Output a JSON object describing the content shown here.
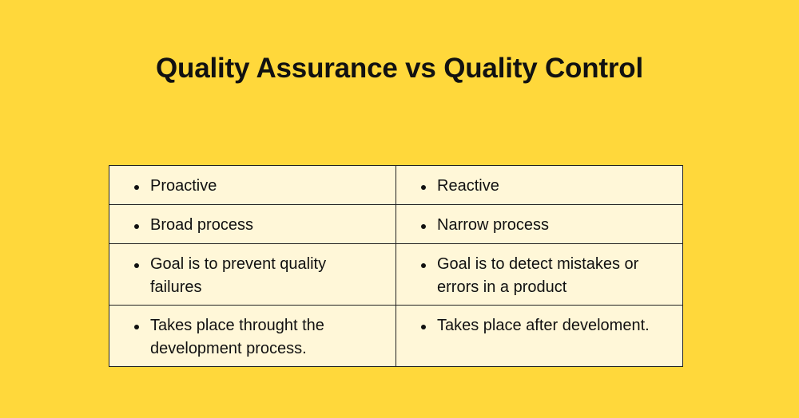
{
  "title": "Quality Assurance vs Quality Control",
  "rows": [
    {
      "qa": "Proactive",
      "qc": "Reactive"
    },
    {
      "qa": "Broad process",
      "qc": "Narrow process"
    },
    {
      "qa": "Goal is to prevent quality failures",
      "qc": "Goal is to detect mistakes or errors in a product"
    },
    {
      "qa": "Takes place throught the development process.",
      "qc": "Takes place after develoment."
    }
  ],
  "colors": {
    "background": "#FFD83B",
    "cell": "#FFF7D8",
    "text": "#111111"
  }
}
